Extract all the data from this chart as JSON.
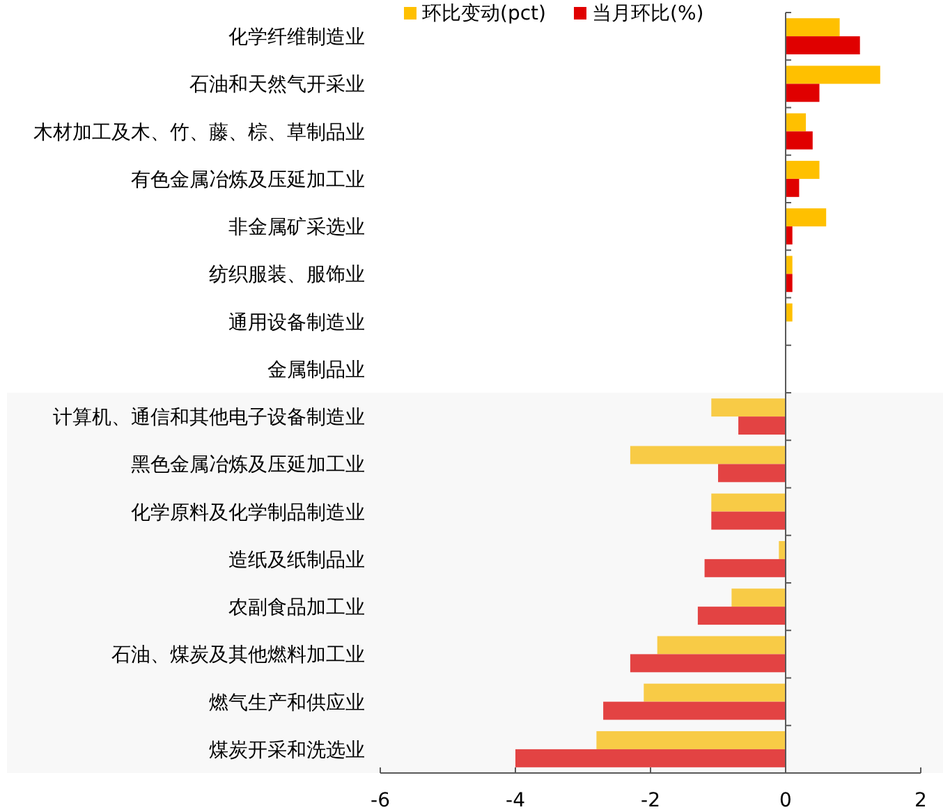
{
  "chart_data": {
    "type": "bar",
    "orientation": "horizontal",
    "categories": [
      "化学纤维制造业",
      "石油和天然气开采业",
      "木材加工及木、竹、藤、棕、草制品业",
      "有色金属冶炼及压延加工业",
      "非金属矿采选业",
      "纺织服装、服饰业",
      "通用设备制造业",
      "金属制品业",
      "计算机、通信和其他电子设备制造业",
      "黑色金属冶炼及压延加工业",
      "化学原料及化学制品制造业",
      "造纸及纸制品业",
      "农副食品加工业",
      "石油、煤炭及其他燃料加工业",
      "燃气生产和供应业",
      "煤炭开采和洗选业"
    ],
    "series": [
      {
        "name": "环比变动(pct)",
        "color": "#ffc000",
        "colors": [
          "#ffc000",
          "#ffc000",
          "#ffc000",
          "#ffc000",
          "#ffc000",
          "#ffc000",
          "#ffc000",
          "#ffc000",
          "#f8cb46",
          "#f8cb46",
          "#f8cb46",
          "#f8cb46",
          "#f8cb46",
          "#f8cb46",
          "#f8cb46",
          "#f8cb46"
        ],
        "values": [
          0.8,
          1.4,
          0.3,
          0.5,
          0.6,
          0.1,
          0.1,
          0,
          -1.1,
          -2.3,
          -1.1,
          -0.1,
          -0.8,
          -1.9,
          -2.1,
          -2.8
        ]
      },
      {
        "name": "当月环比(%)",
        "color": "#e00000",
        "colors": [
          "#e00000",
          "#e00000",
          "#e00000",
          "#e00000",
          "#e00000",
          "#e00000",
          "#e00000",
          "#e00000",
          "#e34343",
          "#e34343",
          "#e34343",
          "#e34343",
          "#e34343",
          "#e34343",
          "#e34343",
          "#e34343"
        ],
        "values": [
          1.1,
          0.5,
          0.4,
          0.2,
          0.1,
          0.1,
          0,
          0,
          -0.7,
          -1.0,
          -1.1,
          -1.2,
          -1.3,
          -2.3,
          -2.7,
          -4.0
        ]
      }
    ],
    "xlim": [
      -6,
      2
    ],
    "xticks": [
      -6,
      -4,
      -2,
      0,
      2
    ],
    "legend": "top",
    "bands": [
      {
        "axis": "y",
        "from": "计算机、通信和其他电子设备制造业",
        "to": "煤炭开采和洗选业",
        "color": "#f8f8f8"
      }
    ]
  }
}
